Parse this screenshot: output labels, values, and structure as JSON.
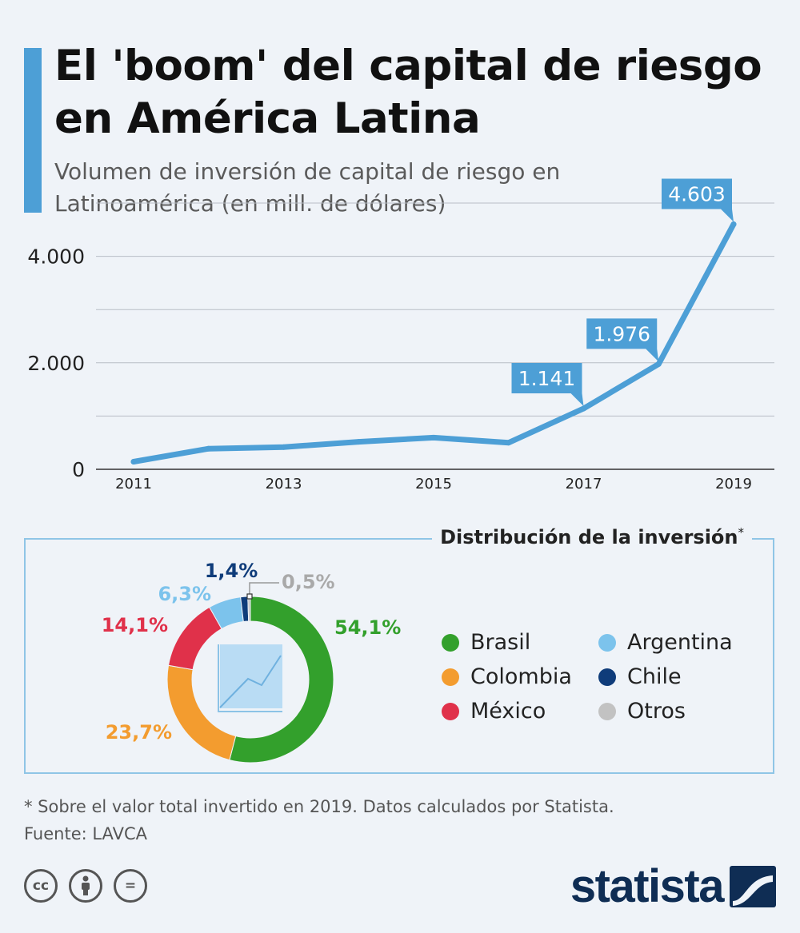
{
  "title": "El 'boom' del capital de riesgo en América Latina",
  "subtitle": "Volumen de inversión de capital de riesgo en Latinoamérica (en mill. de dólares)",
  "chart_data": [
    {
      "type": "line",
      "title": "El 'boom' del capital de riesgo en América Latina",
      "subtitle": "Volumen de inversión de capital de riesgo en Latinoamérica (en mill. de dólares)",
      "x": [
        2011,
        2012,
        2013,
        2014,
        2015,
        2016,
        2017,
        2018,
        2019
      ],
      "values": [
        143,
        387,
        417,
        516,
        594,
        500,
        1141,
        1976,
        4603
      ],
      "data_labels": [
        {
          "year": 2017,
          "label": "1.141"
        },
        {
          "year": 2018,
          "label": "1.976"
        },
        {
          "year": 2019,
          "label": "4.603"
        }
      ],
      "x_tick_labels": [
        "2011",
        "2013",
        "2015",
        "2017",
        "2019"
      ],
      "y_ticks": [
        0,
        1000,
        2000,
        3000,
        4000,
        5000
      ],
      "y_tick_labels": [
        "0",
        "",
        "2.000",
        "",
        "4.000",
        ""
      ],
      "ylim": [
        0,
        5000
      ],
      "grid": true,
      "color": "#4d9fd6"
    },
    {
      "type": "pie",
      "title": "Distribución de la inversión",
      "title_mark": "*",
      "categories": [
        "Brasil",
        "Colombia",
        "México",
        "Argentina",
        "Chile",
        "Otros"
      ],
      "values": [
        54.1,
        23.7,
        14.1,
        6.3,
        1.4,
        0.5
      ],
      "labels": [
        "54,1%",
        "23,7%",
        "14,1%",
        "6,3%",
        "1,4%",
        "0,5%"
      ],
      "colors": [
        "#33a02c",
        "#f39c2f",
        "#e0314a",
        "#7cc3ec",
        "#0f3c7a",
        "#c2c2c2"
      ]
    }
  ],
  "legend": [
    {
      "label": "Brasil",
      "color": "#33a02c"
    },
    {
      "label": "Argentina",
      "color": "#7cc3ec"
    },
    {
      "label": "Colombia",
      "color": "#f39c2f"
    },
    {
      "label": "Chile",
      "color": "#0f3c7a"
    },
    {
      "label": "México",
      "color": "#e0314a"
    },
    {
      "label": "Otros",
      "color": "#c2c2c2"
    }
  ],
  "footnote": "* Sobre el valor total invertido en 2019. Datos calculados por Statista.",
  "source": "Fuente: LAVCA",
  "license_icons": [
    {
      "name": "cc-icon",
      "text": "cc"
    },
    {
      "name": "attribution-icon",
      "text": ""
    },
    {
      "name": "no-derivatives-icon",
      "text": "="
    }
  ],
  "brand": "statista"
}
